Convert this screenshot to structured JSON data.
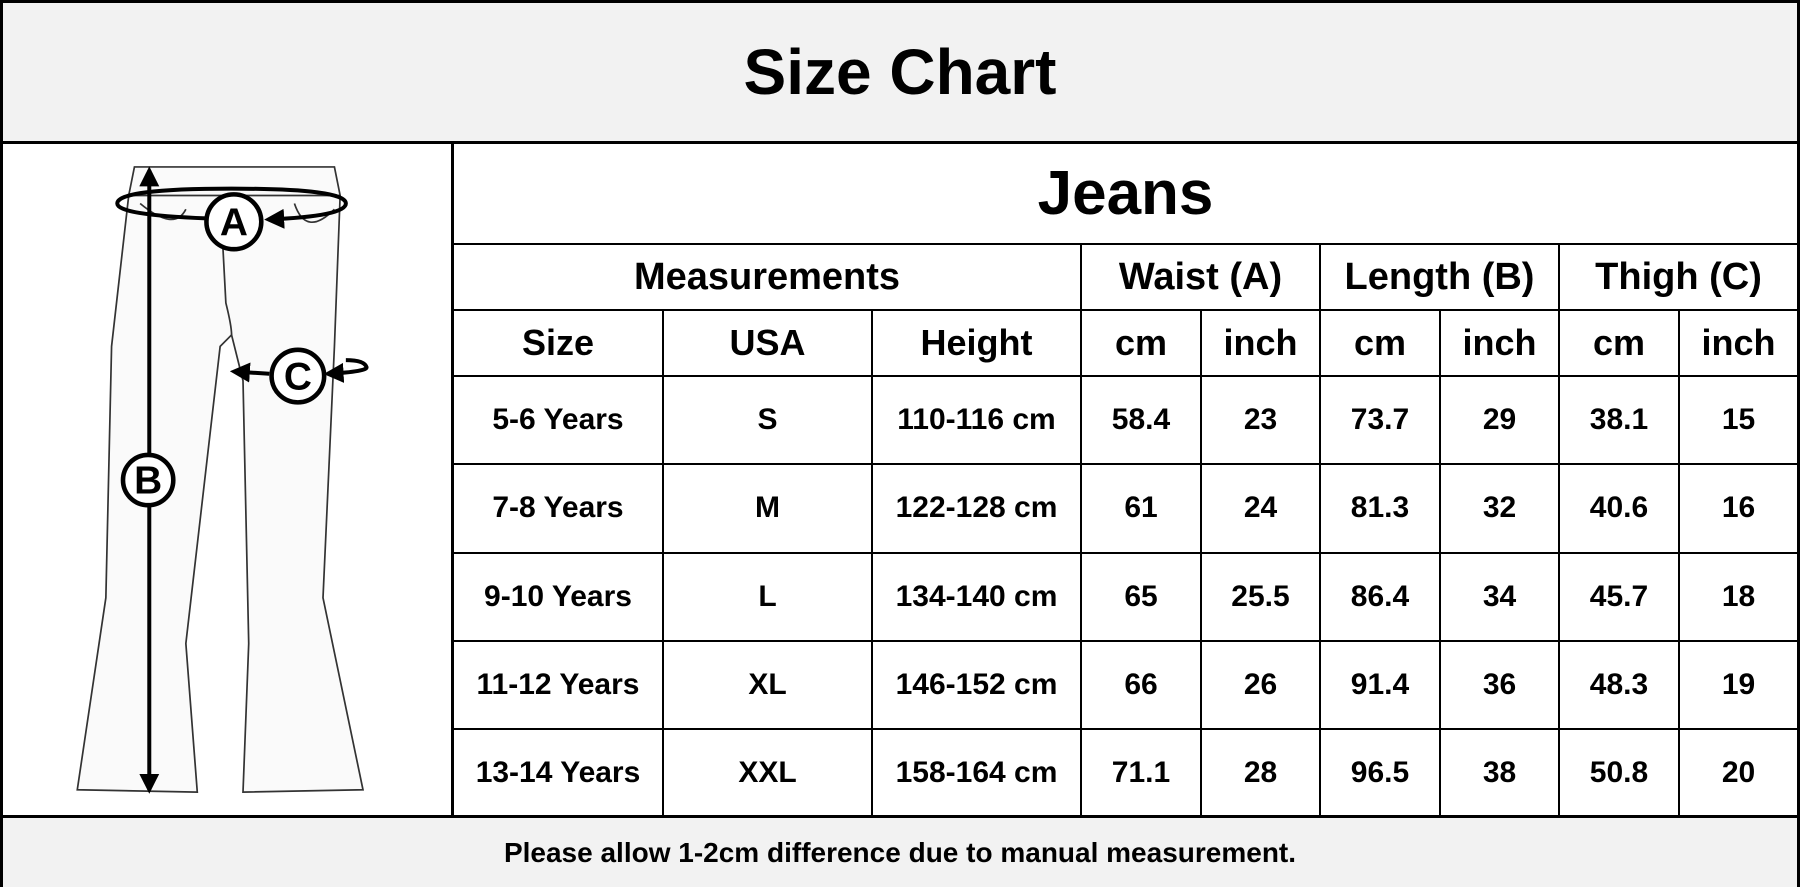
{
  "header": {
    "title": "Size Chart"
  },
  "diagram": {
    "labels": [
      "A",
      "B",
      "C"
    ]
  },
  "table": {
    "title": "Jeans",
    "groups": [
      "Measurements",
      "Waist (A)",
      "Length (B)",
      "Thigh (C)"
    ],
    "columns": [
      "Size",
      "USA",
      "Height",
      "cm",
      "inch",
      "cm",
      "inch",
      "cm",
      "inch"
    ],
    "rows": [
      [
        "5-6 Years",
        "S",
        "110-116 cm",
        "58.4",
        "23",
        "73.7",
        "29",
        "38.1",
        "15"
      ],
      [
        "7-8 Years",
        "M",
        "122-128 cm",
        "61",
        "24",
        "81.3",
        "32",
        "40.6",
        "16"
      ],
      [
        "9-10 Years",
        "L",
        "134-140 cm",
        "65",
        "25.5",
        "86.4",
        "34",
        "45.7",
        "18"
      ],
      [
        "11-12 Years",
        "XL",
        "146-152 cm",
        "66",
        "26",
        "91.4",
        "36",
        "48.3",
        "19"
      ],
      [
        "13-14 Years",
        "XXL",
        "158-164 cm",
        "71.1",
        "28",
        "96.5",
        "38",
        "50.8",
        "20"
      ]
    ]
  },
  "footer": {
    "note": "Please allow 1-2cm difference due to manual measurement."
  }
}
